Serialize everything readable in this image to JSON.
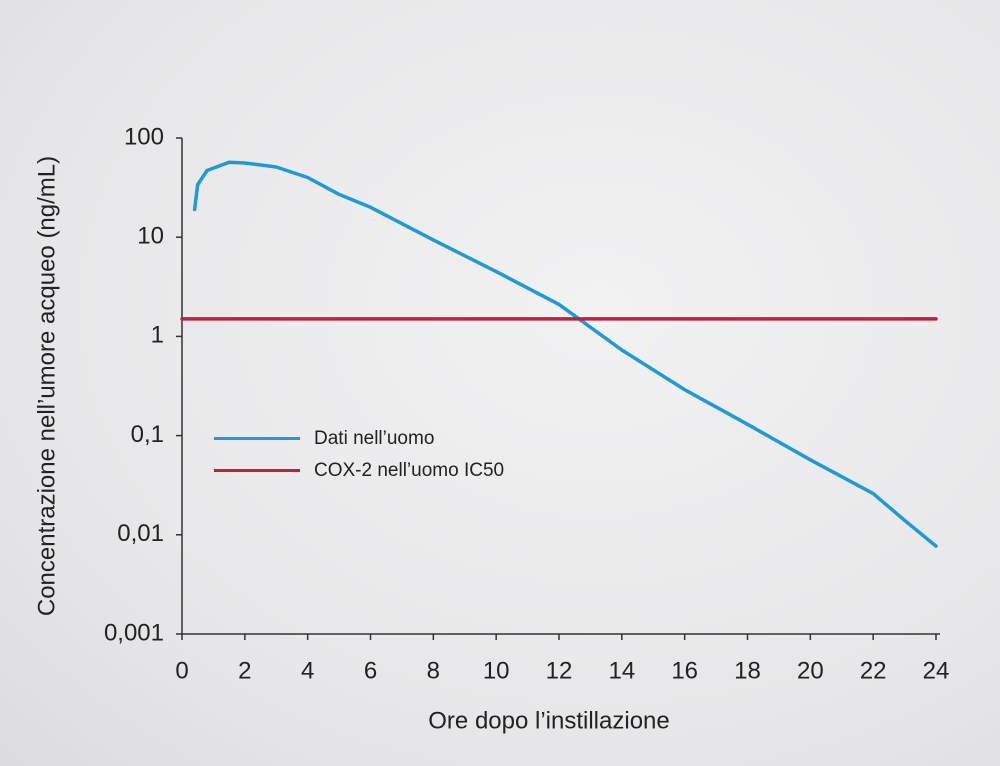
{
  "chart_data": {
    "type": "line",
    "xlabel": "Ore dopo l’instillazione",
    "ylabel": "Concentrazione nell’umore acqueo (ng/mL)",
    "xlim": [
      0,
      24
    ],
    "xticks": [
      0,
      2,
      4,
      6,
      8,
      10,
      12,
      14,
      16,
      18,
      20,
      22,
      24
    ],
    "ylim": [
      0.001,
      100
    ],
    "log_y": true,
    "yticks": [
      {
        "value": 0.001,
        "label": "0,001"
      },
      {
        "value": 0.01,
        "label": "0,01"
      },
      {
        "value": 0.1,
        "label": "0,1"
      },
      1,
      10,
      100
    ],
    "legend": "left",
    "series": [
      {
        "name": "Dati nell’uomo",
        "color": "#1e9ad8",
        "x": [
          0.4,
          0.5,
          0.8,
          1.5,
          2,
          3,
          4,
          5,
          6,
          8,
          10,
          12,
          14,
          16,
          18,
          20,
          22,
          23,
          24
        ],
        "values": [
          19,
          34,
          47,
          57,
          56,
          51,
          40,
          27,
          20,
          9.4,
          4.5,
          2.1,
          0.73,
          0.29,
          0.13,
          0.057,
          0.026,
          0.014,
          0.0077
        ]
      },
      {
        "name": "COX-2 nell’uomo IC50",
        "color": "#c0203a",
        "x": [
          0,
          24
        ],
        "values": [
          1.5,
          1.5
        ]
      }
    ]
  }
}
